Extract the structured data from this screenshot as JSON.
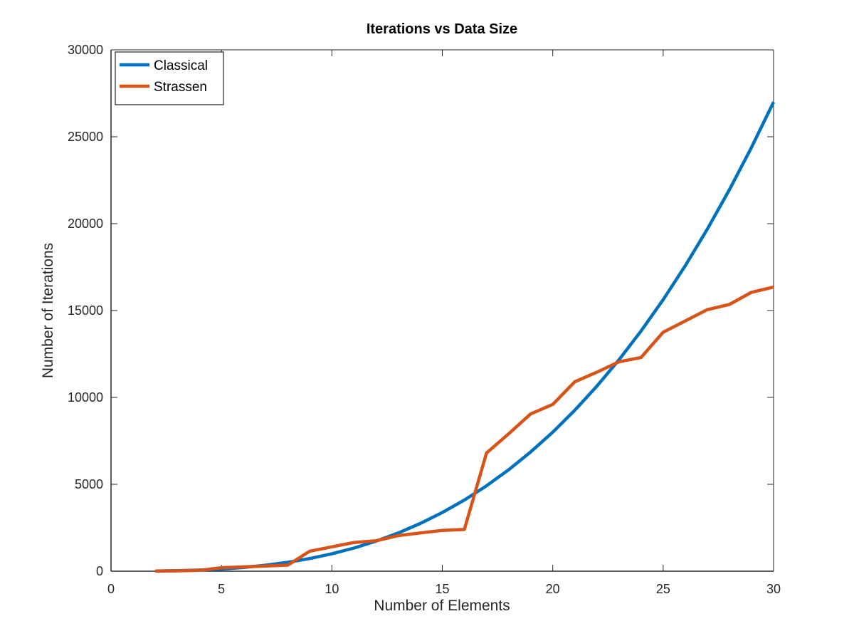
{
  "chart_data": {
    "type": "line",
    "title": "Iterations vs Data Size",
    "xlabel": "Number of Elements",
    "ylabel": "Number of Iterations",
    "xlim": [
      0,
      30
    ],
    "ylim": [
      0,
      30000
    ],
    "xticks": [
      0,
      5,
      10,
      15,
      20,
      25,
      30
    ],
    "yticks": [
      0,
      5000,
      10000,
      15000,
      20000,
      25000,
      30000
    ],
    "grid": false,
    "legend_position": "top-left",
    "x": [
      2,
      3,
      4,
      5,
      6,
      7,
      8,
      9,
      10,
      11,
      12,
      13,
      14,
      15,
      16,
      17,
      18,
      19,
      20,
      21,
      22,
      23,
      24,
      25,
      26,
      27,
      28,
      29,
      30
    ],
    "series": [
      {
        "name": "Classical",
        "color": "#0072BD",
        "values": [
          8,
          27,
          64,
          125,
          216,
          343,
          512,
          729,
          1000,
          1331,
          1728,
          2197,
          2744,
          3375,
          4096,
          4913,
          5832,
          6859,
          8000,
          9261,
          10648,
          12167,
          13824,
          15625,
          17576,
          19683,
          21952,
          24389,
          27000
        ]
      },
      {
        "name": "Strassen",
        "color": "#D95319",
        "values": [
          10,
          20,
          50,
          200,
          250,
          300,
          350,
          1150,
          1400,
          1650,
          1750,
          2050,
          2200,
          2350,
          2400,
          6800,
          7900,
          9050,
          9600,
          10900,
          11450,
          12050,
          12300,
          13750,
          14400,
          15050,
          15350,
          16050,
          16350
        ]
      }
    ]
  }
}
